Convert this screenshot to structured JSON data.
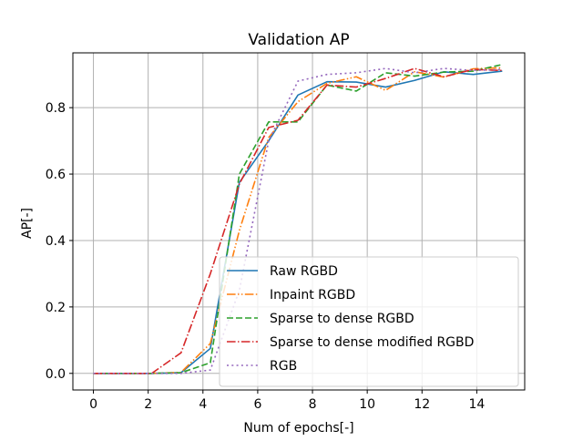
{
  "chart_data": {
    "type": "line",
    "title": "Validation AP",
    "xlabel": "Num of epochs[-]",
    "ylabel": "AP[-]",
    "xlim": [
      -0.75,
      15.75
    ],
    "ylim": [
      -0.05,
      0.965
    ],
    "xticks": [
      0,
      2,
      4,
      6,
      8,
      10,
      12,
      14
    ],
    "yticks": [
      0.0,
      0.2,
      0.4,
      0.6,
      0.8
    ],
    "xtick_labels": [
      "0",
      "2",
      "4",
      "6",
      "8",
      "10",
      "12",
      "14"
    ],
    "ytick_labels": [
      "0.0",
      "0.2",
      "0.4",
      "0.6",
      "0.8"
    ],
    "grid": true,
    "legend_position": "lower-right",
    "series": [
      {
        "name": "Raw RGBD",
        "color": "#1f77b4",
        "dash": "solid",
        "x": [
          0,
          1.07,
          2.13,
          3.2,
          4.27,
          5.33,
          6.4,
          7.47,
          8.53,
          9.6,
          10.67,
          11.73,
          12.8,
          13.87,
          14.93
        ],
        "y": [
          0.0,
          0.0,
          0.0,
          0.002,
          0.075,
          0.575,
          0.7,
          0.838,
          0.878,
          0.877,
          0.862,
          0.882,
          0.908,
          0.9,
          0.91
        ]
      },
      {
        "name": "Inpaint RGBD",
        "color": "#ff7f0e",
        "dash": "dashdotdot",
        "x": [
          0,
          1.07,
          2.13,
          3.2,
          4.27,
          5.33,
          6.4,
          7.47,
          8.53,
          9.6,
          10.67,
          11.73,
          12.8,
          13.87,
          14.93
        ],
        "y": [
          0.0,
          0.0,
          0.0,
          0.003,
          0.09,
          0.43,
          0.71,
          0.818,
          0.873,
          0.893,
          0.852,
          0.908,
          0.892,
          0.917,
          0.92
        ]
      },
      {
        "name": "Sparse to dense RGBD",
        "color": "#2ca02c",
        "dash": "dashed",
        "x": [
          0,
          1.07,
          2.13,
          3.2,
          4.27,
          5.33,
          6.4,
          7.47,
          8.53,
          9.6,
          10.67,
          11.73,
          12.8,
          13.87,
          14.93
        ],
        "y": [
          0.0,
          0.0,
          0.0,
          0.002,
          0.032,
          0.6,
          0.757,
          0.757,
          0.868,
          0.85,
          0.905,
          0.895,
          0.907,
          0.91,
          0.93
        ]
      },
      {
        "name": "Sparse to dense modified RGBD",
        "color": "#d62728",
        "dash": "dashdot",
        "x": [
          0,
          1.07,
          2.13,
          3.2,
          4.27,
          5.33,
          6.4,
          7.47,
          8.53,
          9.6,
          10.67,
          11.73,
          12.8,
          13.87,
          14.93
        ],
        "y": [
          0.0,
          0.0,
          0.0,
          0.062,
          0.3,
          0.57,
          0.74,
          0.762,
          0.868,
          0.862,
          0.888,
          0.918,
          0.893,
          0.915,
          0.912
        ]
      },
      {
        "name": "RGB",
        "color": "#9467bd",
        "dash": "dotted",
        "x": [
          0,
          1.07,
          2.13,
          3.2,
          4.27,
          5.33,
          6.4,
          7.47,
          8.53,
          9.6,
          10.67,
          11.73,
          12.8,
          13.87,
          14.93
        ],
        "y": [
          0.0,
          0.0,
          0.0,
          0.0,
          0.01,
          0.25,
          0.7,
          0.88,
          0.9,
          0.905,
          0.918,
          0.905,
          0.918,
          0.912,
          0.915
        ]
      }
    ]
  }
}
